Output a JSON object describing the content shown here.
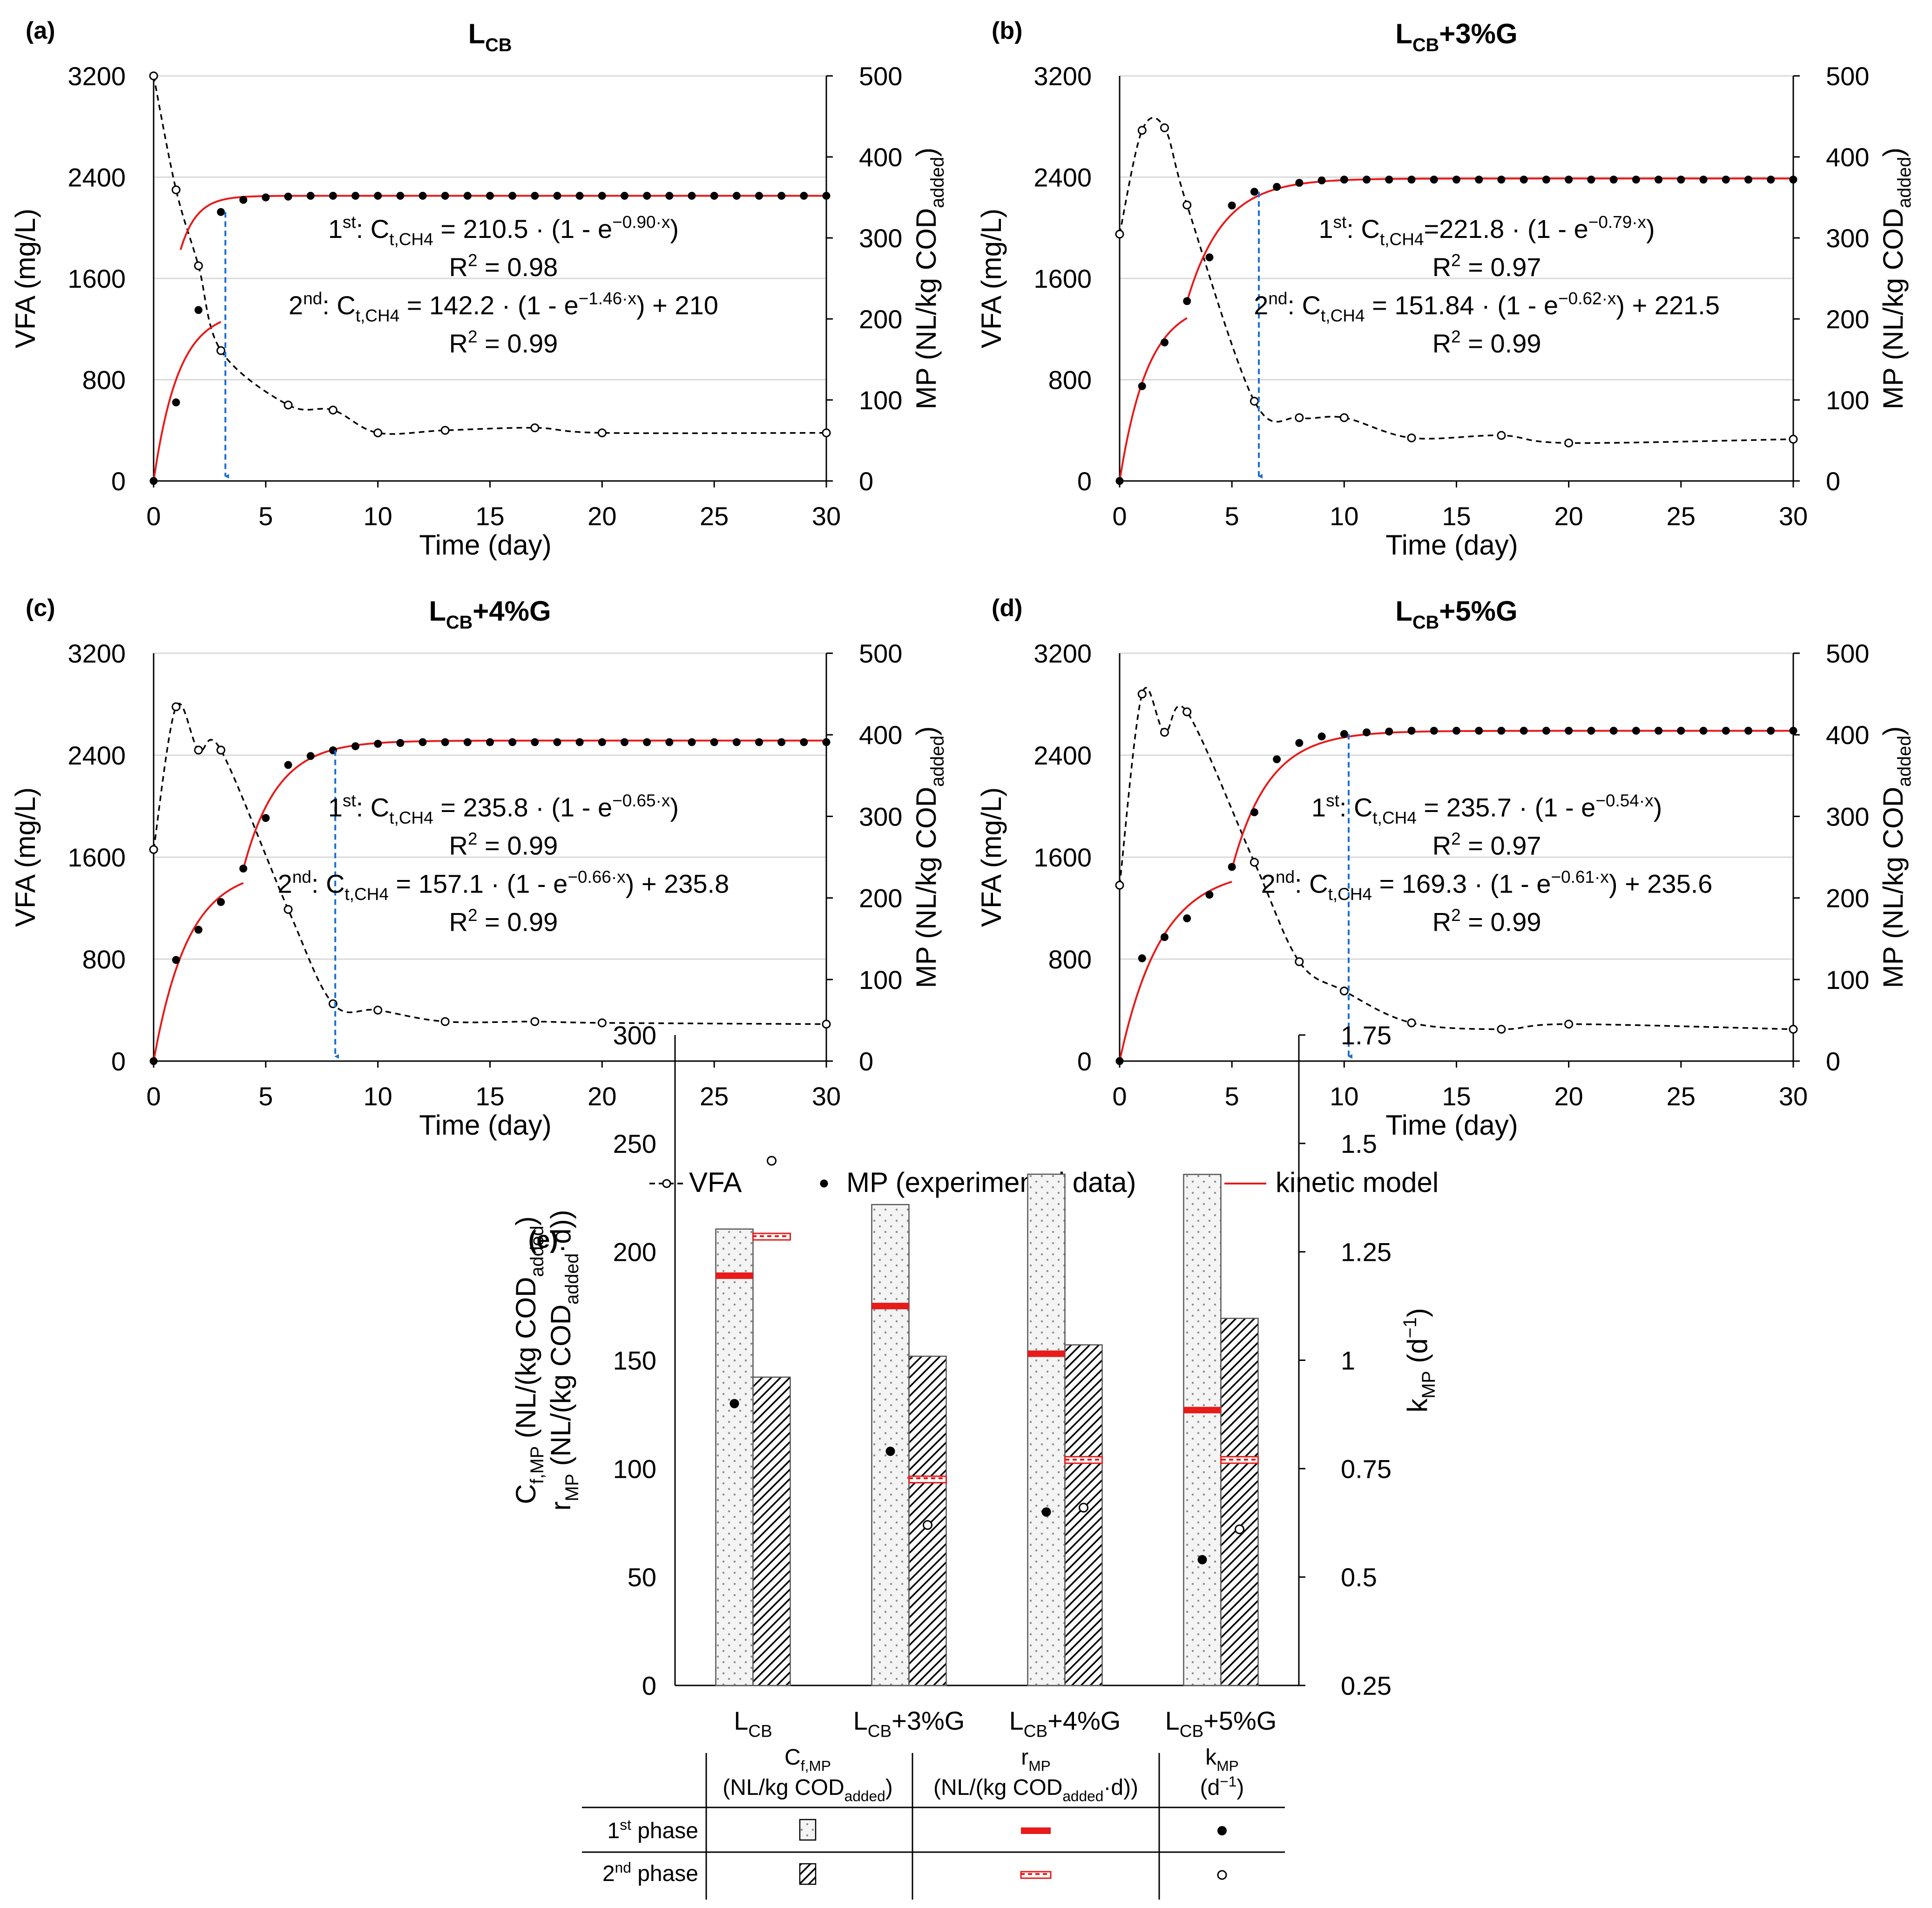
{
  "colors": {
    "vfa": "#000000",
    "mp": "#000000",
    "model": "#e81a1a",
    "arrow": "#1a6fd1",
    "grid": "#d9d9d9",
    "bar_edge": "#555555"
  },
  "legend": {
    "vfa": "VFA",
    "mp": "MP (experimental data)",
    "model": "kinetic model"
  },
  "chart_data": [
    {
      "type": "line",
      "id": "a",
      "panel_label": "(a)",
      "title": {
        "main": "L",
        "sub": "CB",
        "rest": ""
      },
      "xlabel": "Time (day)",
      "ylabel": "VFA (mg/L)",
      "y2label_main": "MP (NL/kg COD",
      "y2label_sub": "added",
      "y2label_end": ")",
      "xlim": [
        0,
        30
      ],
      "ylim": [
        0,
        3200
      ],
      "y2lim": [
        0,
        500
      ],
      "xticks": [
        0,
        5,
        10,
        15,
        20,
        25,
        30
      ],
      "yticks": [
        0,
        800,
        1600,
        2400,
        3200
      ],
      "y2ticks": [
        0,
        100,
        200,
        300,
        400,
        500
      ],
      "vfa": {
        "x": [
          0,
          1,
          2,
          3,
          6,
          8,
          10,
          13,
          17,
          20,
          30
        ],
        "y": [
          3200,
          2300,
          1700,
          1030,
          600,
          560,
          380,
          400,
          420,
          380,
          380
        ]
      },
      "mp": {
        "x": [
          0,
          1,
          2,
          3,
          4,
          5,
          6,
          7,
          8,
          9,
          10,
          11,
          12,
          13,
          14,
          15,
          16,
          17,
          18,
          19,
          20,
          21,
          22,
          23,
          24,
          25,
          26,
          27,
          28,
          29,
          30
        ],
        "y": [
          0,
          97,
          211,
          332,
          347,
          350,
          351,
          352,
          352,
          352,
          352,
          352,
          352,
          352,
          352,
          352,
          352,
          352,
          352,
          352,
          352,
          352,
          352,
          352,
          352,
          352,
          352,
          352,
          352,
          352,
          352
        ]
      },
      "model1": {
        "C": 210.5,
        "k": 0.9,
        "end": 3
      },
      "model2": {
        "C": 142.2,
        "k": 1.46,
        "off": 210,
        "start": 0
      },
      "arrow_x": 3.2,
      "equations": [
        {
          "a": "1",
          "b": "st",
          "c": ": C",
          "d": "t,CH4",
          "e": " = 210.5 · (1 - e",
          "f": "−0.90·x",
          "g": ")"
        },
        {
          "a": "R",
          "b": "2",
          "c": " = 0.98"
        },
        {
          "a": "2",
          "b": "nd",
          "c": ": C",
          "d": "t,CH4",
          "e": " = 142.2 · (1 - e",
          "f": "−1.46·x",
          "g": ") + 210"
        },
        {
          "a": "R",
          "b": "2",
          "c": " = 0.99"
        }
      ]
    },
    {
      "type": "line",
      "id": "b",
      "panel_label": "(b)",
      "title": {
        "main": "L",
        "sub": "CB",
        "rest": "+3%G"
      },
      "xlabel": "Time (day)",
      "ylabel": "VFA (mg/L)",
      "y2label_main": "MP (NL/kg COD",
      "y2label_sub": "added",
      "y2label_end": ")",
      "xlim": [
        0,
        30
      ],
      "ylim": [
        0,
        3200
      ],
      "y2lim": [
        0,
        500
      ],
      "xticks": [
        0,
        5,
        10,
        15,
        20,
        25,
        30
      ],
      "yticks": [
        0,
        800,
        1600,
        2400,
        3200
      ],
      "y2ticks": [
        0,
        100,
        200,
        300,
        400,
        500
      ],
      "vfa": {
        "x": [
          0,
          1,
          2,
          3,
          6,
          8,
          10,
          13,
          17,
          20,
          30
        ],
        "y": [
          1950,
          2770,
          2790,
          2180,
          630,
          500,
          500,
          340,
          360,
          300,
          330
        ]
      },
      "mp": {
        "x": [
          0,
          1,
          2,
          3,
          4,
          5,
          6,
          7,
          8,
          9,
          10,
          11,
          12,
          13,
          14,
          15,
          16,
          17,
          18,
          19,
          20,
          21,
          22,
          23,
          24,
          25,
          26,
          27,
          28,
          29,
          30
        ],
        "y": [
          0,
          117,
          171,
          222,
          276,
          340,
          357,
          363,
          368,
          371,
          372,
          372,
          372,
          372,
          372,
          372,
          372,
          372,
          372,
          372,
          372,
          372,
          372,
          372,
          372,
          372,
          372,
          372,
          372,
          372,
          372
        ]
      },
      "model1": {
        "C": 221.8,
        "k": 0.79,
        "end": 3
      },
      "model2": {
        "C": 151.84,
        "k": 0.62,
        "off": 221.5,
        "start": 3
      },
      "arrow_x": 6.2,
      "equations": [
        {
          "a": "1",
          "b": "st",
          "c": ": C",
          "d": "t,CH4",
          "e": "=221.8 · (1 - e",
          "f": "−0.79·x",
          "g": ")"
        },
        {
          "a": "R",
          "b": "2",
          "c": " = 0.97"
        },
        {
          "a": "2",
          "b": "nd",
          "c": ": C",
          "d": "t,CH4",
          "e": " = 151.84 · (1 - e",
          "f": "−0.62·x",
          "g": ") + 221.5"
        },
        {
          "a": "R",
          "b": "2",
          "c": " = 0.99"
        }
      ]
    },
    {
      "type": "line",
      "id": "c",
      "panel_label": "(c)",
      "title": {
        "main": "L",
        "sub": "CB",
        "rest": "+4%G"
      },
      "xlabel": "Time (day)",
      "ylabel": "VFA (mg/L)",
      "y2label_main": "MP (NL/kg COD",
      "y2label_sub": "added",
      "y2label_end": ")",
      "xlim": [
        0,
        30
      ],
      "ylim": [
        0,
        3200
      ],
      "y2lim": [
        0,
        500
      ],
      "xticks": [
        0,
        5,
        10,
        15,
        20,
        25,
        30
      ],
      "yticks": [
        0,
        800,
        1600,
        2400,
        3200
      ],
      "y2ticks": [
        0,
        100,
        200,
        300,
        400,
        500
      ],
      "vfa": {
        "x": [
          0,
          1,
          2,
          3,
          6,
          8,
          10,
          13,
          17,
          20,
          30
        ],
        "y": [
          1660,
          2780,
          2440,
          2440,
          1190,
          450,
          400,
          310,
          310,
          300,
          290
        ]
      },
      "mp": {
        "x": [
          0,
          1,
          2,
          3,
          4,
          5,
          6,
          7,
          8,
          9,
          10,
          11,
          12,
          13,
          14,
          15,
          16,
          17,
          18,
          19,
          20,
          21,
          22,
          23,
          24,
          25,
          26,
          27,
          28,
          29,
          30
        ],
        "y": [
          0,
          124,
          161,
          195,
          236,
          298,
          363,
          374,
          381,
          386,
          389,
          390,
          391,
          391,
          391,
          391,
          391,
          391,
          391,
          391,
          391,
          391,
          391,
          391,
          391,
          391,
          391,
          391,
          391,
          391,
          391
        ]
      },
      "model1": {
        "C": 235.8,
        "k": 0.65,
        "end": 4
      },
      "model2": {
        "C": 157.1,
        "k": 0.66,
        "off": 235.8,
        "start": 4
      },
      "arrow_x": 8.1,
      "equations": [
        {
          "a": "1",
          "b": "st",
          "c": ": C",
          "d": "t,CH4",
          "e": " = 235.8 · (1 - e",
          "f": "−0.65·x",
          "g": ")"
        },
        {
          "a": "R",
          "b": "2",
          "c": " = 0.99"
        },
        {
          "a": "2",
          "b": "nd",
          "c": ": C",
          "d": "t,CH4",
          "e": " = 157.1 · (1 - e",
          "f": "−0.66·x",
          "g": ") + 235.8"
        },
        {
          "a": "R",
          "b": "2",
          "c": " = 0.99"
        }
      ]
    },
    {
      "type": "line",
      "id": "d",
      "panel_label": "(d)",
      "title": {
        "main": "L",
        "sub": "CB",
        "rest": "+5%G"
      },
      "xlabel": "Time (day)",
      "ylabel": "VFA (mg/L)",
      "y2label_main": "MP (NL/kg COD",
      "y2label_sub": "added",
      "y2label_end": ")",
      "xlim": [
        0,
        30
      ],
      "ylim": [
        0,
        3200
      ],
      "y2lim": [
        0,
        500
      ],
      "xticks": [
        0,
        5,
        10,
        15,
        20,
        25,
        30
      ],
      "yticks": [
        0,
        800,
        1600,
        2400,
        3200
      ],
      "y2ticks": [
        0,
        100,
        200,
        300,
        400,
        500
      ],
      "vfa": {
        "x": [
          0,
          1,
          2,
          3,
          6,
          8,
          10,
          13,
          17,
          20,
          30
        ],
        "y": [
          1380,
          2880,
          2580,
          2740,
          1560,
          780,
          550,
          300,
          250,
          290,
          250
        ]
      },
      "mp": {
        "x": [
          0,
          1,
          2,
          3,
          4,
          5,
          6,
          7,
          8,
          9,
          10,
          11,
          12,
          13,
          14,
          15,
          16,
          17,
          18,
          19,
          20,
          21,
          22,
          23,
          24,
          25,
          26,
          27,
          28,
          29,
          30
        ],
        "y": [
          0,
          126,
          152,
          175,
          204,
          238,
          305,
          370,
          390,
          398,
          401,
          403,
          404,
          405,
          405,
          405,
          405,
          405,
          405,
          405,
          405,
          405,
          405,
          405,
          405,
          405,
          405,
          405,
          405,
          405,
          405
        ]
      },
      "model1": {
        "C": 235.7,
        "k": 0.54,
        "end": 5
      },
      "model2": {
        "C": 169.3,
        "k": 0.61,
        "off": 235.6,
        "start": 5
      },
      "arrow_x": 10.2,
      "equations": [
        {
          "a": "1",
          "b": "st",
          "c": ": C",
          "d": "t,CH4",
          "e": " = 235.7 · (1 - e",
          "f": "−0.54·x",
          "g": ")"
        },
        {
          "a": "R",
          "b": "2",
          "c": " = 0.97"
        },
        {
          "a": "2",
          "b": "nd",
          "c": ": C",
          "d": "t,CH4",
          "e": " = 169.3 · (1 - e",
          "f": "−0.61·x",
          "g": ") + 235.6"
        },
        {
          "a": "R",
          "b": "2",
          "c": " = 0.99"
        }
      ]
    },
    {
      "type": "bar",
      "id": "e",
      "panel_label": "(e)",
      "categories": [
        {
          "main": "L",
          "sub": "CB",
          "rest": ""
        },
        {
          "main": "L",
          "sub": "CB",
          "rest": "+3%G"
        },
        {
          "main": "L",
          "sub": "CB",
          "rest": "+4%G"
        },
        {
          "main": "L",
          "sub": "CB",
          "rest": "+5%G"
        }
      ],
      "ylim": [
        0,
        300
      ],
      "yticks": [
        0,
        50,
        100,
        150,
        200,
        250,
        300
      ],
      "y2lim": [
        0.25,
        1.75
      ],
      "y2ticks": [
        "0.25",
        "0.5",
        "0.75",
        "1",
        "1.25",
        "1.5",
        "1.75"
      ],
      "ylabel_line1": {
        "a": "C",
        "b": "f,MP",
        "c": " (NL/(kg COD",
        "d": "added",
        "e": ")"
      },
      "ylabel_line2": {
        "a": "r",
        "b": "MP",
        "c": " (NL/(kg COD",
        "d": "added",
        "e": "·d))"
      },
      "y2label": {
        "a": "k",
        "b": "MP",
        "c": " (d",
        "d": "−1",
        "e": ")"
      },
      "series": [
        {
          "name": "Cf,MP 1st phase",
          "values": [
            210.5,
            221.8,
            235.8,
            235.7
          ]
        },
        {
          "name": "Cf,MP 2nd phase",
          "values": [
            142.2,
            151.84,
            157.1,
            169.3
          ]
        },
        {
          "name": "rMP 1st phase",
          "values": [
            189,
            175,
            153,
            127
          ]
        },
        {
          "name": "rMP 2nd phase",
          "values": [
            207,
            95,
            104,
            104
          ]
        },
        {
          "name": "kMP 1st phase",
          "values": [
            0.9,
            0.79,
            0.65,
            0.54
          ]
        },
        {
          "name": "kMP 2nd phase",
          "values": [
            1.46,
            0.62,
            0.66,
            0.61
          ]
        }
      ]
    }
  ],
  "legend_table": {
    "col1": {
      "a": "C",
      "b": "f,MP",
      "c": "(NL/kg COD",
      "d": "added",
      "e": ")"
    },
    "col2": {
      "a": "r",
      "b": "MP",
      "c": "(NL/(kg COD",
      "d": "added",
      "e": "·d))"
    },
    "col3": {
      "a": "k",
      "b": "MP",
      "c": "(d",
      "d": "−1",
      "e": ")"
    },
    "row1": {
      "a": "1",
      "b": "st",
      "c": " phase"
    },
    "row2": {
      "a": "2",
      "b": "nd",
      "c": " phase"
    }
  }
}
